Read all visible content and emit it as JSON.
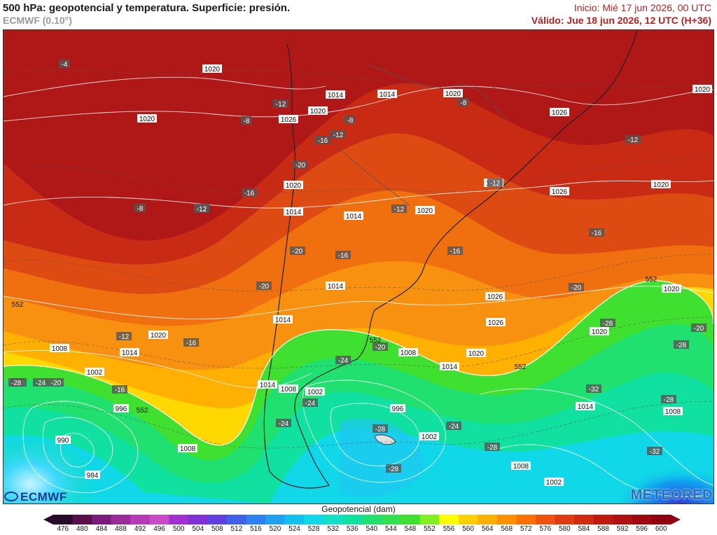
{
  "header": {
    "title": "500 hPa: geopotencial y temperatura. Superficie: presión.",
    "model": "ECMWF (0.10°)",
    "init": "Inicio: Mié 17 jun 2026, 00 UTC",
    "valid": "Válido: Jue 18 jun 2026, 12 UTC (H+36)"
  },
  "map": {
    "pressure_labels": [
      "1020",
      "1020",
      "1014",
      "1014",
      "1020",
      "1020",
      "1026",
      "1020",
      "1026",
      "1026",
      "1020",
      "1020",
      "1014",
      "1014",
      "1020",
      "1020",
      "1014",
      "1026",
      "1014",
      "1020",
      "1008",
      "1014",
      "1020",
      "1008",
      "1014",
      "1002",
      "1014",
      "1008",
      "1002",
      "996",
      "996",
      "1002",
      "990",
      "1008",
      "984",
      "1008",
      "1014",
      "1008",
      "1002",
      "1020",
      "1026",
      "1020"
    ],
    "temp_labels": [
      "-4",
      "-8",
      "-12",
      "-8",
      "-12",
      "-8",
      "-16",
      "-8",
      "-12",
      "-16",
      "-20",
      "-12",
      "-12",
      "-16",
      "-12",
      "-12",
      "-16",
      "-20",
      "-20",
      "-16",
      "-20",
      "-20",
      "-20",
      "-24",
      "-28",
      "-12",
      "-16",
      "-16",
      "-28",
      "-24",
      "-20",
      "-24",
      "-28",
      "-24",
      "-28",
      "-32",
      "-28",
      "-28",
      "-32",
      "-28",
      "-24",
      "-20"
    ],
    "height_labels": [
      "552",
      "552",
      "552",
      "552",
      "552"
    ]
  },
  "colorbar": {
    "title": "Geopotencial (dam)",
    "ticks": [
      "476",
      "480",
      "484",
      "488",
      "492",
      "496",
      "500",
      "504",
      "508",
      "512",
      "516",
      "520",
      "524",
      "528",
      "532",
      "536",
      "540",
      "544",
      "548",
      "552",
      "556",
      "560",
      "564",
      "568",
      "572",
      "576",
      "580",
      "584",
      "588",
      "592",
      "596",
      "600"
    ],
    "colors": [
      "#2a0a2a",
      "#5b0f4a",
      "#7a1a7a",
      "#9b2a9b",
      "#b83ab8",
      "#c84ac8",
      "#a030d0",
      "#8030d8",
      "#6040e0",
      "#4060e8",
      "#3080f0",
      "#20a0f0",
      "#10c0f0",
      "#10d8e8",
      "#10e0c8",
      "#10e0a0",
      "#20e070",
      "#30e050",
      "#40e030",
      "#80f020",
      "#ffff00",
      "#ffd000",
      "#ffb000",
      "#ff9000",
      "#ff7000",
      "#f05010",
      "#e03a10",
      "#d02a10",
      "#c01a10",
      "#b01010",
      "#a00810",
      "#900010"
    ]
  },
  "logos": {
    "left": "ECMWF",
    "right": "METEORED"
  }
}
